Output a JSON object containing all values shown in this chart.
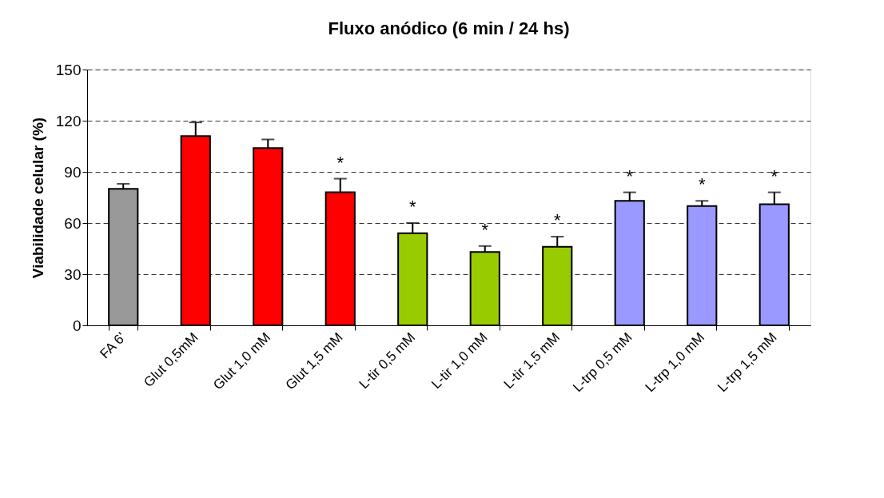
{
  "chart_data": {
    "type": "bar",
    "title": "Fluxo anódico (6 min / 24 hs)",
    "ylabel": "Viabilidade celular (%)",
    "categories": [
      "FA 6'",
      "Glut 0,5mM",
      "Glut 1,0 mM",
      "Glut 1,5 mM",
      "L-tir 0,5 mM",
      "L-tir 1,0 mM",
      "L-tir 1,5 mM",
      "L-trp 0,5 mM",
      "L-trp 1,0 mM",
      "L-trp 1,5 mM"
    ],
    "values": [
      80,
      111,
      104,
      78,
      54,
      43,
      46,
      73,
      70,
      71
    ],
    "errors": [
      3,
      8,
      5,
      8,
      6,
      3.5,
      6,
      5,
      3,
      7
    ],
    "colors": [
      "#999999",
      "#ff0000",
      "#ff0000",
      "#ff0000",
      "#99cc00",
      "#99cc00",
      "#99cc00",
      "#9999ff",
      "#9999ff",
      "#9999ff"
    ],
    "ylim": [
      0,
      150
    ],
    "yticks": [
      0,
      30,
      60,
      90,
      120,
      150
    ],
    "grid": "y",
    "value_labels": [
      null,
      null,
      null,
      "*",
      "*",
      "*",
      "*",
      "*",
      "*",
      "*"
    ]
  }
}
